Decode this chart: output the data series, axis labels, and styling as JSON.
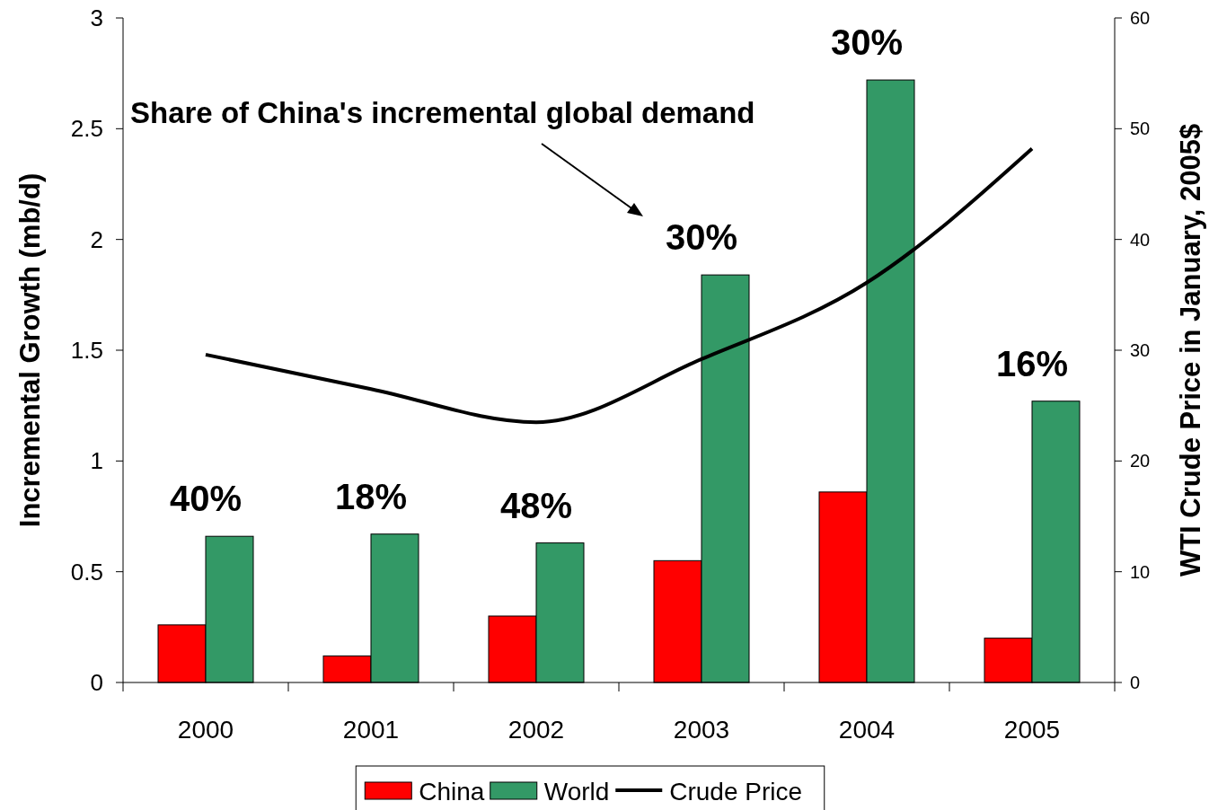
{
  "chart_data": {
    "type": "bar",
    "categories": [
      "2000",
      "2001",
      "2002",
      "2003",
      "2004",
      "2005"
    ],
    "series": [
      {
        "name": "China",
        "color": "#ff0000",
        "values": [
          0.26,
          0.12,
          0.3,
          0.55,
          0.86,
          0.2
        ]
      },
      {
        "name": "World",
        "color": "#339966",
        "values": [
          0.66,
          0.67,
          0.63,
          1.84,
          2.72,
          1.27
        ]
      },
      {
        "name": "Crude Price",
        "type": "line",
        "axis": "y2",
        "color": "#000000",
        "values": [
          29.6,
          26.5,
          23.5,
          29.2,
          36.1,
          48.2
        ]
      }
    ],
    "ylabel": "Incremental Growth (mb/d)",
    "y2label": "WTI Crude Price in January, 2005$",
    "ylim": [
      0,
      3
    ],
    "yticks": [
      0,
      0.5,
      1,
      1.5,
      2,
      2.5,
      3
    ],
    "y2lim": [
      0,
      60
    ],
    "y2ticks": [
      0,
      10,
      20,
      30,
      40,
      50,
      60
    ],
    "annotations": [
      "Share of China's incremental global demand",
      "40%",
      "18%",
      "48%",
      "30%",
      "30%",
      "16%"
    ],
    "legend": "bottom"
  }
}
